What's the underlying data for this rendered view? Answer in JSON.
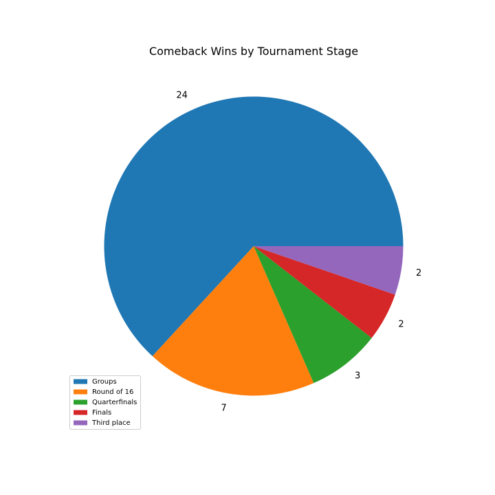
{
  "chart_data": {
    "type": "pie",
    "title": "Comeback Wins by Tournament Stage",
    "categories": [
      "Groups",
      "Round of 16",
      "Quarterfinals",
      "Finals",
      "Third place"
    ],
    "values": [
      24,
      7,
      3,
      2,
      2
    ],
    "labels": [
      "24",
      "7",
      "3",
      "2",
      "2"
    ],
    "colors": [
      "#1f77b4",
      "#ff7f0e",
      "#2ca02c",
      "#d62728",
      "#9467bd"
    ],
    "start_angle_deg": 0,
    "direction": "counterclockwise",
    "legend_position": "lower-left"
  }
}
